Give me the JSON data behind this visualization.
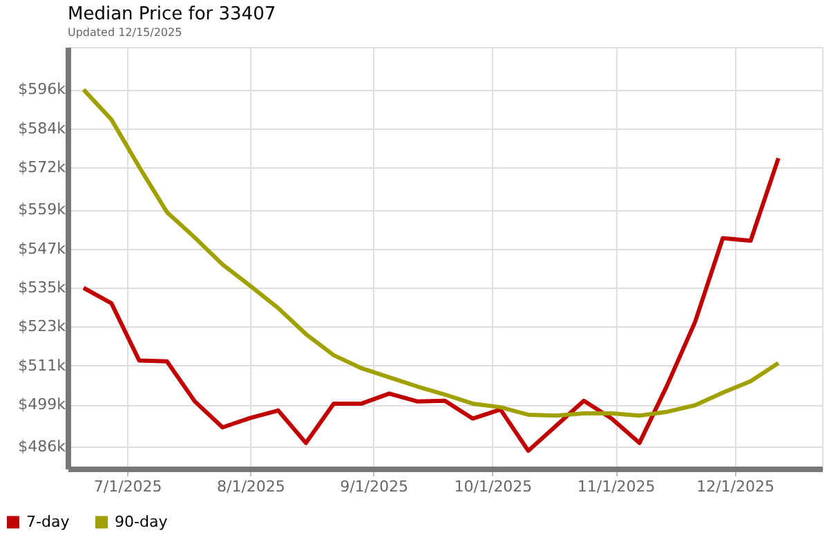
{
  "chart_data": {
    "type": "line",
    "title": "Median Price for 33407",
    "subtitle": "Updated 12/15/2025",
    "x": [
      "2025-06-20",
      "2025-06-27",
      "2025-07-04",
      "2025-07-11",
      "2025-07-18",
      "2025-07-25",
      "2025-08-01",
      "2025-08-08",
      "2025-08-15",
      "2025-08-22",
      "2025-08-29",
      "2025-09-05",
      "2025-09-12",
      "2025-09-19",
      "2025-09-26",
      "2025-10-03",
      "2025-10-10",
      "2025-10-17",
      "2025-10-24",
      "2025-10-31",
      "2025-11-07",
      "2025-11-14",
      "2025-11-21",
      "2025-11-28",
      "2025-12-05",
      "2025-12-12"
    ],
    "series": [
      {
        "name": "7-day",
        "color": "#c00000",
        "values": [
          534.9,
          530.2,
          512.6,
          512.3,
          500.0,
          492.0,
          494.9,
          497.2,
          487.2,
          499.3,
          499.3,
          502.4,
          500.0,
          500.2,
          494.7,
          497.5,
          484.8,
          492.5,
          500.2,
          494.7,
          487.2,
          505.0,
          524.4,
          550.2,
          549.4,
          574.8
        ]
      },
      {
        "name": "90-day",
        "color": "#a0a000",
        "values": [
          595.9,
          586.7,
          572.1,
          558.2,
          550.4,
          542.1,
          535.5,
          528.7,
          520.7,
          514.2,
          510.2,
          507.4,
          504.6,
          502.1,
          499.3,
          498.2,
          495.9,
          495.6,
          496.3,
          496.3,
          495.6,
          496.8,
          498.8,
          502.7,
          506.2,
          511.8
        ]
      }
    ],
    "xlim": [
      "2025-06-16",
      "2025-12-23"
    ],
    "xticks": [
      {
        "value": "2025-07-01",
        "label": "7/1/2025"
      },
      {
        "value": "2025-08-01",
        "label": "8/1/2025"
      },
      {
        "value": "2025-09-01",
        "label": "9/1/2025"
      },
      {
        "value": "2025-10-01",
        "label": "10/1/2025"
      },
      {
        "value": "2025-11-01",
        "label": "11/1/2025"
      },
      {
        "value": "2025-12-01",
        "label": "12/1/2025"
      }
    ],
    "ylim": [
      479.3,
      609.0
    ],
    "yticks": [
      {
        "value": 486,
        "label": "$486k"
      },
      {
        "value": 499,
        "label": "$499k"
      },
      {
        "value": 511,
        "label": "$511k"
      },
      {
        "value": 523,
        "label": "$523k"
      },
      {
        "value": 535,
        "label": "$535k"
      },
      {
        "value": 547,
        "label": "$547k"
      },
      {
        "value": 559,
        "label": "$559k"
      },
      {
        "value": 572,
        "label": "$572k"
      },
      {
        "value": 584,
        "label": "$584k"
      },
      {
        "value": 596,
        "label": "$596k"
      }
    ],
    "grid": true,
    "legend": "bottom left",
    "marker": "none",
    "line_style": "solid"
  }
}
